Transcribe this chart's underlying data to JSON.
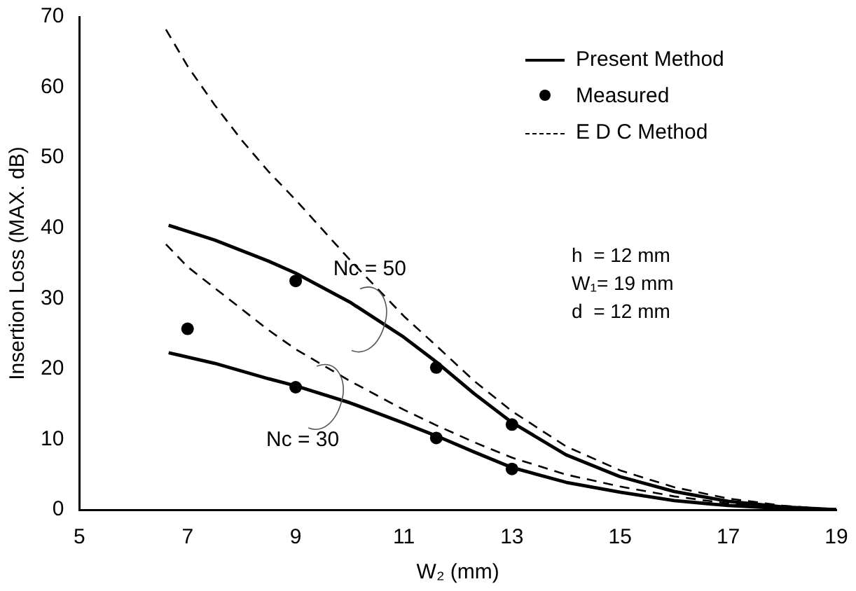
{
  "chart_data": {
    "type": "line",
    "xlabel": "W₂ (mm)",
    "ylabel": "Insertion Loss (MAX. dB)",
    "xlim": [
      5,
      19
    ],
    "xticks": [
      5,
      7,
      9,
      11,
      13,
      15,
      17,
      19
    ],
    "ylim": [
      0,
      70
    ],
    "yticks": [
      0,
      10,
      20,
      30,
      40,
      50,
      60,
      70
    ],
    "legend": "top right",
    "series": [
      {
        "name": "Present Method",
        "line_style": "solid",
        "marker": "none",
        "color": "#000000",
        "x": [
          6.65,
          7.5,
          8.5,
          9,
          10,
          11,
          11.6,
          12.3,
          13,
          14,
          15,
          16,
          17,
          18,
          19
        ],
        "values": [
          40.4,
          38.3,
          35.3,
          33.6,
          29.5,
          24.5,
          21,
          16.5,
          12.4,
          7.8,
          4.7,
          2.6,
          1.2,
          0.4,
          0
        ]
      },
      {
        "line_style": "solid",
        "marker": "none",
        "color": "#000000",
        "x": [
          6.65,
          7.5,
          8.5,
          9,
          10,
          11,
          11.6,
          12.3,
          13,
          14,
          15,
          16,
          17,
          18,
          19
        ],
        "values": [
          22.3,
          20.8,
          18.6,
          17.6,
          15.2,
          12.3,
          10.5,
          8.2,
          6,
          3.9,
          2.5,
          1.3,
          0.6,
          0.2,
          0
        ]
      },
      {
        "name": "Measured",
        "type": "scatter",
        "marker": "circle",
        "color": "#000000",
        "x": [
          7,
          9,
          9,
          11.6,
          11.6,
          13,
          13
        ],
        "values": [
          25.7,
          32.5,
          17.4,
          20.2,
          10.2,
          12.1,
          5.8
        ]
      },
      {
        "name": "E D C  Method",
        "line_style": "dashed",
        "marker": "none",
        "color": "#000000",
        "x": [
          6.6,
          7,
          7.5,
          8,
          8.5,
          9,
          10,
          11,
          11.6,
          12.3,
          13,
          14,
          15,
          16,
          17,
          18,
          19
        ],
        "values": [
          68.2,
          63,
          57.5,
          52.5,
          48,
          44,
          35.5,
          27.5,
          23.3,
          18.3,
          14,
          9,
          5.6,
          3.2,
          1.6,
          0.6,
          0
        ]
      },
      {
        "line_style": "dashed",
        "marker": "none",
        "color": "#000000",
        "x": [
          6.6,
          7,
          7.5,
          8,
          8.5,
          9,
          10,
          11,
          11.6,
          12.3,
          13,
          14,
          15,
          16,
          17,
          18,
          19
        ],
        "values": [
          37.7,
          34.5,
          31.5,
          28.5,
          25.5,
          22.8,
          18.3,
          14.2,
          12,
          9.6,
          7.4,
          5,
          3.3,
          1.9,
          0.9,
          0.3,
          0
        ]
      }
    ],
    "annotations": [
      {
        "text": "Nc = 50",
        "x": 10.5,
        "y": 27
      },
      {
        "text": "Nc = 30",
        "x": 9.7,
        "y": 16
      },
      "h  = 12 mm",
      "W₁= 19 mm",
      "d  = 12 mm"
    ]
  }
}
